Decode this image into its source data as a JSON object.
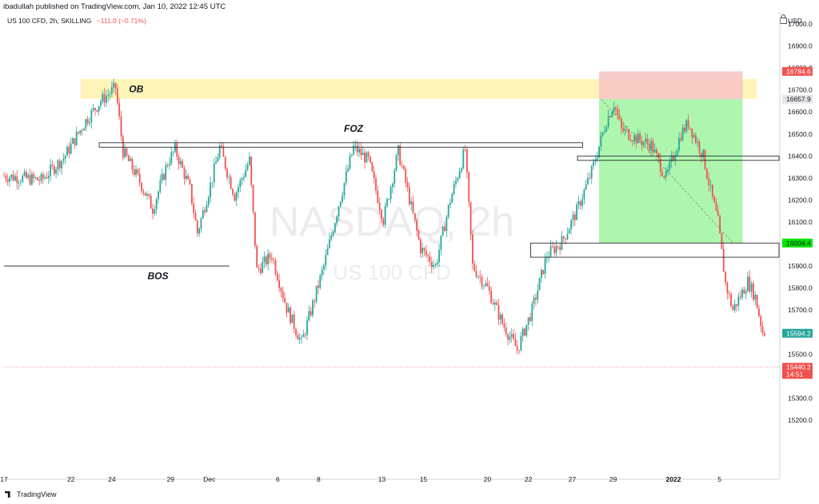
{
  "header": {
    "published": "ibadullah published on TradingView.com, Jan 10, 2022 12:45 UTC",
    "symbol": "US 100 CFD, 2h, SKILLING",
    "change": "−111.0 (−0.71%)"
  },
  "axis_currency": "USD",
  "watermark": {
    "line1": "NASDAQ, 2h",
    "line2": "US 100 CFD"
  },
  "footer": {
    "brand": "TradingView"
  },
  "colors": {
    "up": "#26a69a",
    "down": "#ef5350",
    "ob_zone": "#fff3b0",
    "profit_zone": "#a5f5a5",
    "stop_zone": "#f7c6c6"
  },
  "chart_data": {
    "type": "candlestick",
    "timeframe": "2h",
    "ylim": [
      15160,
      17040
    ],
    "y_ticks": [
      15200,
      15300,
      15400,
      15500,
      15600,
      15700,
      15800,
      15900,
      16000,
      16100,
      16200,
      16300,
      16400,
      16500,
      16600,
      16700,
      16800,
      16900,
      17000
    ],
    "x_tick_labels": [
      "17",
      "22",
      "24",
      "29",
      "Dec",
      "6",
      "8",
      "13",
      "15",
      "20",
      "22",
      "27",
      "29",
      "2022",
      "5"
    ],
    "price_path": [
      [
        0,
        16310
      ],
      [
        5,
        16290
      ],
      [
        8,
        16390
      ],
      [
        11,
        16560
      ],
      [
        13,
        16650
      ],
      [
        15,
        16710
      ],
      [
        16,
        16420
      ],
      [
        18,
        16300
      ],
      [
        20,
        16160
      ],
      [
        22,
        16370
      ],
      [
        23,
        16430
      ],
      [
        25,
        16250
      ],
      [
        26,
        16050
      ],
      [
        28,
        16300
      ],
      [
        29,
        16440
      ],
      [
        31,
        16220
      ],
      [
        33,
        16380
      ],
      [
        34,
        15880
      ],
      [
        36,
        15950
      ],
      [
        38,
        15710
      ],
      [
        40,
        15550
      ],
      [
        43,
        15900
      ],
      [
        45,
        16180
      ],
      [
        47,
        16440
      ],
      [
        49,
        16380
      ],
      [
        51,
        16110
      ],
      [
        53,
        16420
      ],
      [
        54,
        16280
      ],
      [
        56,
        15980
      ],
      [
        58,
        15900
      ],
      [
        60,
        16200
      ],
      [
        62,
        16430
      ],
      [
        63,
        15900
      ],
      [
        65,
        15800
      ],
      [
        67,
        15640
      ],
      [
        69,
        15520
      ],
      [
        71,
        15700
      ],
      [
        73,
        15950
      ],
      [
        75,
        16010
      ],
      [
        77,
        16150
      ],
      [
        79,
        16330
      ],
      [
        81,
        16560
      ],
      [
        82,
        16640
      ],
      [
        83,
        16520
      ],
      [
        85,
        16480
      ],
      [
        87,
        16450
      ],
      [
        89,
        16300
      ],
      [
        91,
        16500
      ],
      [
        92,
        16550
      ],
      [
        94,
        16400
      ],
      [
        95,
        16240
      ],
      [
        96,
        16100
      ],
      [
        97,
        15820
      ],
      [
        98,
        15700
      ],
      [
        100,
        15830
      ],
      [
        101,
        15760
      ],
      [
        102,
        15600
      ]
    ],
    "series": [
      {
        "name": "US 100 CFD",
        "last": 15594.2
      }
    ],
    "annotations": {
      "labels": [
        "OB",
        "FOZ",
        "BOS"
      ],
      "ob_zone": [
        16660,
        16750
      ],
      "foz_level": [
        16440,
        16460
      ],
      "bos_level": 15900,
      "position": {
        "type": "short",
        "entry": 16657.9,
        "stop": 16784.6,
        "target": 16004.4
      },
      "extra_levels": [
        16400,
        16380,
        15970,
        15940
      ]
    },
    "price_labels": [
      {
        "value": "16784.6",
        "price": 16784.6,
        "bg": "#ef5350",
        "fg": "#ffffff"
      },
      {
        "value": "16657.9",
        "price": 16657.9,
        "bg": "#e6e6ea",
        "fg": "#131722"
      },
      {
        "value": "16004.4",
        "price": 16004.4,
        "bg": "#00e600",
        "fg": "#131722"
      },
      {
        "value": "15594.2",
        "price": 15594.2,
        "bg": "#26a69a",
        "fg": "#ffffff"
      },
      {
        "value": "15440.2",
        "price": 15440.2,
        "bg": "#ef5350",
        "fg": "#ffffff",
        "sub": "14:51"
      }
    ]
  }
}
